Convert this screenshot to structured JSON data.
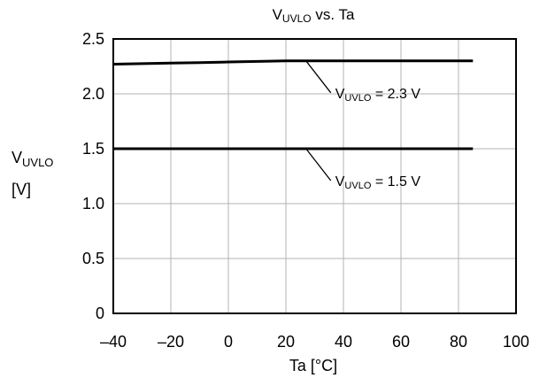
{
  "chart_data": {
    "type": "line",
    "title": {
      "main": "V",
      "sub": "UVLO",
      "tail": " vs. Ta"
    },
    "xlabel": "Ta [°C]",
    "ylabel": {
      "main": "V",
      "sub": "UVLO",
      "unit": "[V]"
    },
    "xlim": [
      -40,
      100
    ],
    "ylim": [
      0,
      2.5
    ],
    "x_ticks": [
      -40,
      -20,
      0,
      20,
      40,
      60,
      80,
      100
    ],
    "x_tick_labels": [
      "–40",
      "–20",
      "0",
      "20",
      "40",
      "60",
      "80",
      "100"
    ],
    "y_ticks": [
      0,
      0.5,
      1.0,
      1.5,
      2.0,
      2.5
    ],
    "y_tick_labels": [
      "0",
      "0.5",
      "1.0",
      "1.5",
      "2.0",
      "2.5"
    ],
    "grid": true,
    "series": [
      {
        "x": [
          -40,
          -30,
          -20,
          -10,
          0,
          10,
          20,
          25,
          40,
          60,
          85
        ],
        "y": [
          2.27,
          2.275,
          2.28,
          2.285,
          2.29,
          2.295,
          2.3,
          2.3,
          2.3,
          2.3,
          2.3
        ]
      },
      {
        "x": [
          -40,
          -20,
          0,
          20,
          25,
          40,
          60,
          85
        ],
        "y": [
          1.5,
          1.5,
          1.5,
          1.5,
          1.5,
          1.5,
          1.5,
          1.5
        ]
      }
    ],
    "annotations": [
      {
        "main": "V",
        "sub": "UVLO",
        "tail": " = 2.3 V",
        "anchor_x": 27,
        "anchor_y": 2.3,
        "series": 0
      },
      {
        "main": "V",
        "sub": "UVLO",
        "tail": " = 1.5 V",
        "anchor_x": 27,
        "anchor_y": 1.5,
        "series": 1
      }
    ]
  }
}
